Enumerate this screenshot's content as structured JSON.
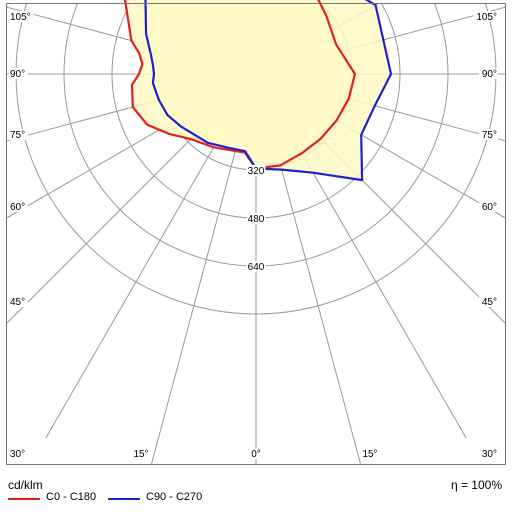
{
  "chart_data": {
    "type": "polar-ldc",
    "unit": "cd/klm",
    "efficiency": "η = 100%",
    "radial_ticks": [
      160,
      320,
      480,
      640,
      800
    ],
    "radial_labels": [
      {
        "value": 320,
        "text": "320"
      },
      {
        "value": 480,
        "text": "480"
      },
      {
        "value": 640,
        "text": "640"
      }
    ],
    "angle_labels_left": [
      {
        "angle": 105,
        "text": "105°"
      },
      {
        "angle": 90,
        "text": "90°"
      },
      {
        "angle": 75,
        "text": "75°"
      },
      {
        "angle": 60,
        "text": "60°"
      },
      {
        "angle": 45,
        "text": "45°"
      },
      {
        "angle": 30,
        "text": "30°"
      }
    ],
    "angle_labels_right": [
      {
        "angle": 105,
        "text": "105°"
      },
      {
        "angle": 90,
        "text": "90°"
      },
      {
        "angle": 75,
        "text": "75°"
      },
      {
        "angle": 60,
        "text": "60°"
      },
      {
        "angle": 45,
        "text": "45°"
      },
      {
        "angle": 30,
        "text": "30°"
      }
    ],
    "angle_labels_bottom": [
      {
        "angle": -15,
        "text": "15°"
      },
      {
        "angle": 0,
        "text": "0°"
      },
      {
        "angle": 15,
        "text": "15°"
      }
    ],
    "series": [
      {
        "name": "C0 - C180",
        "color": "#e02020",
        "points": [
          [
            -8,
            265
          ],
          [
            -30,
            282
          ],
          [
            -45,
            307
          ],
          [
            -55,
            350
          ],
          [
            -65,
            400
          ],
          [
            -75,
            425
          ],
          [
            -85,
            415
          ],
          [
            -90,
            390
          ],
          [
            -95,
            380
          ],
          [
            -100,
            395
          ],
          [
            -105,
            430
          ],
          [
            -120,
            505
          ],
          [
            -135,
            480
          ],
          [
            -150,
            465
          ],
          [
            -165,
            415
          ],
          [
            -180,
            415
          ],
          [
            165,
            390
          ],
          [
            150,
            355
          ],
          [
            130,
            305
          ],
          [
            110,
            285
          ],
          [
            90,
            330
          ],
          [
            75,
            320
          ],
          [
            60,
            310
          ],
          [
            45,
            305
          ],
          [
            30,
            305
          ],
          [
            15,
            315
          ],
          [
            0,
            315
          ]
        ]
      },
      {
        "name": "C90 - C270",
        "color": "#2020cc",
        "points": [
          [
            -8,
            260
          ],
          [
            -20,
            262
          ],
          [
            -35,
            280
          ],
          [
            -55,
            305
          ],
          [
            -65,
            325
          ],
          [
            -75,
            335
          ],
          [
            -85,
            345
          ],
          [
            -90,
            340
          ],
          [
            -95,
            345
          ],
          [
            -100,
            355
          ],
          [
            -110,
            390
          ],
          [
            -125,
            450
          ],
          [
            -135,
            480
          ],
          [
            -150,
            465
          ],
          [
            -165,
            415
          ],
          [
            -180,
            415
          ],
          [
            165,
            395
          ],
          [
            150,
            400
          ],
          [
            120,
            460
          ],
          [
            90,
            450
          ],
          [
            75,
            410
          ],
          [
            60,
            405
          ],
          [
            45,
            500
          ],
          [
            30,
            380
          ],
          [
            15,
            330
          ],
          [
            0,
            315
          ]
        ]
      }
    ]
  },
  "footer": {
    "unit": "cd/klm",
    "efficiency": "η = 100%",
    "legend": [
      {
        "label": "C0 - C180",
        "color": "#e02020"
      },
      {
        "label": "C90 - C270",
        "color": "#2020cc"
      }
    ]
  }
}
